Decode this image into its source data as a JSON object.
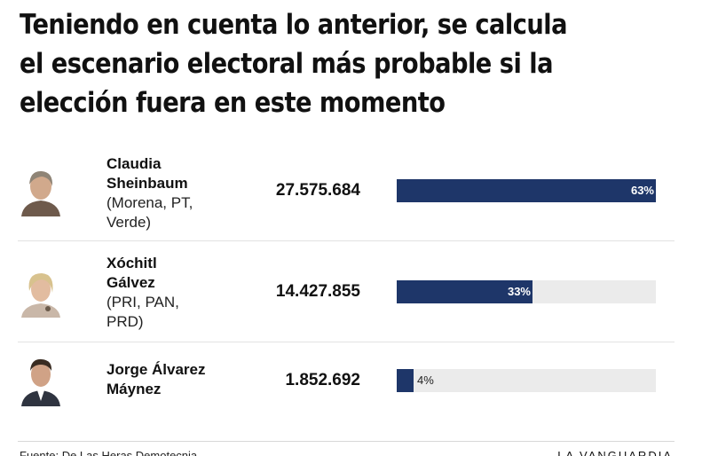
{
  "title": "Teniendo en cuenta lo anterior, se calcula el escenario electoral más probable si la elección fuera en este momento",
  "chart_data": {
    "type": "bar",
    "categories": [
      "Claudia Sheinbaum",
      "Xóchitl Gálvez",
      "Jorge Álvarez Máynez"
    ],
    "parties": [
      "(Morena, PT, Verde)",
      "(PRI, PAN, PRD)",
      ""
    ],
    "votes": [
      "27.575.684",
      "14.427.855",
      "1.852.692"
    ],
    "values": [
      63,
      33,
      4
    ],
    "value_labels": [
      "63%",
      "33%",
      "4%"
    ],
    "xlim": [
      0,
      63
    ],
    "bar_color": "#1e3669",
    "track_color": "#ebebeb"
  },
  "rows": [
    {
      "name_line1": "Claudia",
      "name_line2": "Sheinbaum",
      "party_line1": "(Morena, PT,",
      "party_line2": "Verde)",
      "avatar_icon": "candidate-portrait-icon"
    },
    {
      "name_line1": "Xóchitl",
      "name_line2": "Gálvez",
      "party_line1": "(PRI, PAN,",
      "party_line2": "PRD)",
      "avatar_icon": "candidate-portrait-icon"
    },
    {
      "name_line1": "Jorge Álvarez",
      "name_line2": "Máynez",
      "party_line1": "",
      "party_line2": "",
      "avatar_icon": "candidate-portrait-icon"
    }
  ],
  "footer": {
    "source": "Fuente: De Las Heras Demotecnia",
    "brand": "LA VANGUARDIA"
  }
}
